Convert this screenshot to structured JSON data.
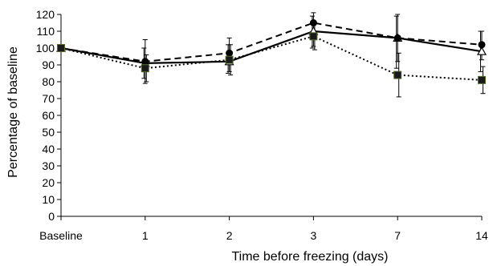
{
  "chart_data": {
    "type": "line",
    "title": "",
    "xlabel": "Time before freezing (days)",
    "ylabel": "Percentage of baseline",
    "ylim": [
      0,
      120
    ],
    "yticks": [
      0,
      10,
      20,
      30,
      40,
      50,
      60,
      70,
      80,
      90,
      100,
      110,
      120
    ],
    "categories": [
      "Baseline",
      "1",
      "2",
      "3",
      "7",
      "14"
    ],
    "grid": false,
    "legend": "none",
    "series": [
      {
        "style": "solid",
        "marker": "open-triangle",
        "color": "#000000",
        "values": [
          100,
          91,
          92,
          110,
          106,
          98
        ],
        "err_low": [
          100,
          82,
          85,
          100,
          88,
          86
        ],
        "err_high": [
          100,
          100,
          102,
          119,
          119,
          110
        ]
      },
      {
        "style": "dashed",
        "marker": "filled-circle",
        "color": "#000000",
        "values": [
          100,
          92,
          97,
          115,
          106,
          102
        ],
        "err_low": [
          100,
          79,
          86,
          101,
          92,
          93
        ],
        "err_high": [
          100,
          105,
          106,
          121,
          120,
          110
        ]
      },
      {
        "style": "dotted",
        "marker": "filled-square",
        "color": "#000000",
        "values": [
          100,
          88,
          93,
          107,
          84,
          81
        ],
        "err_low": [
          100,
          80,
          84,
          99,
          71,
          73
        ],
        "err_high": [
          100,
          96,
          102,
          115,
          97,
          89
        ]
      }
    ]
  }
}
